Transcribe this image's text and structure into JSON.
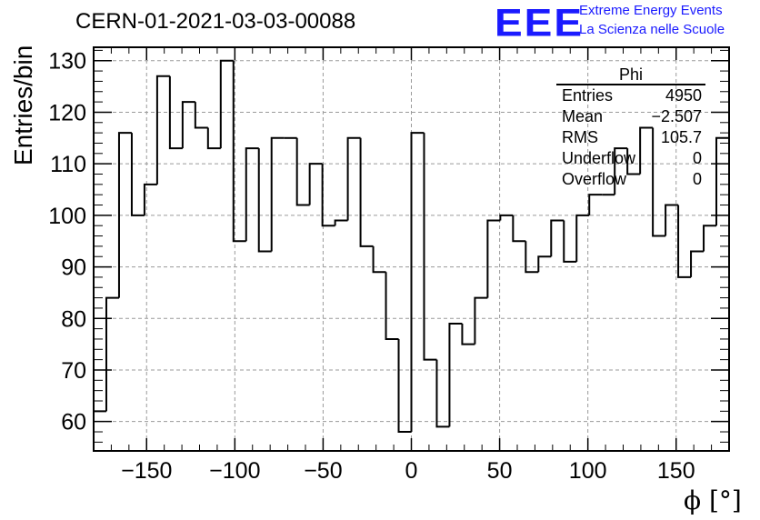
{
  "header": {
    "run_title": "CERN-01-2021-03-03-00088",
    "logo_text": "EEE",
    "logo_line1": "Extreme Energy Events",
    "logo_line2": "La Scienza nelle Scuole"
  },
  "stats": {
    "title": "Phi",
    "rows": [
      {
        "label": "Entries",
        "value": "4950"
      },
      {
        "label": "Mean",
        "value": "−2.507"
      },
      {
        "label": "RMS",
        "value": "105.7"
      },
      {
        "label": "Underflow",
        "value": "0"
      },
      {
        "label": "Overflow",
        "value": "0"
      }
    ]
  },
  "colors": {
    "logo": "#1a1aff",
    "line": "#000000",
    "grid": "#9a9a9a"
  },
  "chart_data": {
    "type": "histogram",
    "xlabel": "ϕ [°]",
    "ylabel": "Entries/bin",
    "xlim": [
      -180,
      180
    ],
    "ylim": [
      54.3,
      132.6
    ],
    "bin_width": 7.2,
    "xticks": [
      -150,
      -100,
      -50,
      0,
      50,
      100,
      150
    ],
    "xtick_labels": [
      "−150",
      "−100",
      "−50",
      "0",
      "50",
      "100",
      "150"
    ],
    "yticks": [
      60,
      70,
      80,
      90,
      100,
      110,
      120,
      130
    ],
    "ytick_labels": [
      "60",
      "70",
      "80",
      "90",
      "100",
      "110",
      "120",
      "130"
    ],
    "grid": true,
    "values": [
      62,
      84,
      116,
      100,
      106,
      127,
      113,
      122,
      117,
      113,
      130,
      95,
      113,
      93,
      115,
      115,
      102,
      110,
      98,
      99,
      115,
      94,
      89,
      76,
      58,
      116,
      72,
      59,
      79,
      75,
      84,
      99,
      100,
      95,
      89,
      92,
      99,
      91,
      100,
      104,
      104,
      113,
      108,
      117,
      96,
      102,
      88,
      93,
      98,
      115
    ]
  }
}
